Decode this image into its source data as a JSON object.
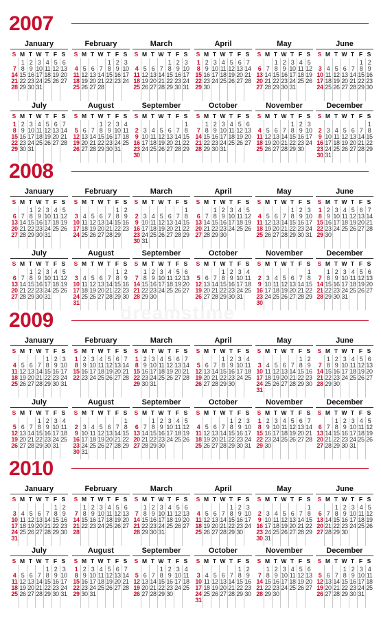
{
  "weekday_labels": [
    "S",
    "M",
    "T",
    "W",
    "T",
    "F",
    "S"
  ],
  "month_names": [
    "January",
    "February",
    "March",
    "April",
    "May",
    "June",
    "July",
    "August",
    "September",
    "October",
    "November",
    "December"
  ],
  "accent_color": "#c8102e",
  "watermark": "dreamstime",
  "years": [
    {
      "year": "2007",
      "first_weekday": [
        1,
        4,
        4,
        0,
        2,
        5,
        0,
        3,
        6,
        1,
        4,
        6
      ]
    },
    {
      "year": "2008",
      "first_weekday": [
        2,
        5,
        6,
        2,
        4,
        0,
        2,
        5,
        1,
        3,
        6,
        1
      ]
    },
    {
      "year": "2009",
      "first_weekday": [
        4,
        0,
        0,
        3,
        5,
        1,
        3,
        6,
        2,
        4,
        0,
        2
      ]
    },
    {
      "year": "2010",
      "first_weekday": [
        5,
        1,
        1,
        4,
        6,
        2,
        4,
        0,
        3,
        5,
        1,
        3
      ]
    }
  ],
  "month_lengths": {
    "2007": [
      31,
      28,
      31,
      30,
      31,
      30,
      31,
      31,
      30,
      31,
      30,
      31
    ],
    "2008": [
      31,
      29,
      31,
      30,
      31,
      30,
      31,
      31,
      30,
      31,
      30,
      31
    ],
    "2009": [
      31,
      28,
      31,
      30,
      31,
      30,
      31,
      31,
      30,
      31,
      30,
      31
    ],
    "2010": [
      31,
      28,
      31,
      30,
      31,
      30,
      31,
      31,
      30,
      31,
      30,
      31
    ]
  }
}
